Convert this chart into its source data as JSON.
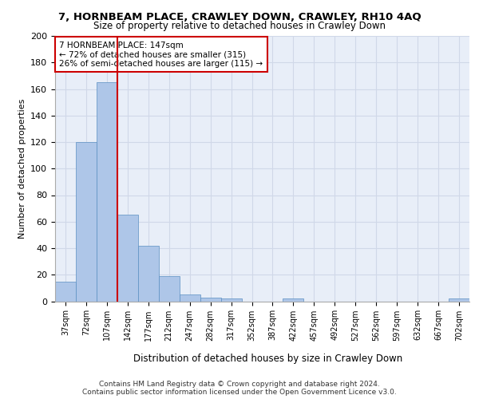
{
  "title": "7, HORNBEAM PLACE, CRAWLEY DOWN, CRAWLEY, RH10 4AQ",
  "subtitle": "Size of property relative to detached houses in Crawley Down",
  "xlabel": "Distribution of detached houses by size in Crawley Down",
  "ylabel": "Number of detached properties",
  "bar_values": [
    15,
    120,
    165,
    65,
    42,
    19,
    5,
    3,
    2,
    0,
    0,
    2,
    0,
    0,
    0,
    0,
    0,
    0,
    0,
    2
  ],
  "bar_labels": [
    "37sqm",
    "72sqm",
    "107sqm",
    "142sqm",
    "177sqm",
    "212sqm",
    "247sqm",
    "282sqm",
    "317sqm",
    "352sqm",
    "387sqm",
    "422sqm",
    "457sqm",
    "492sqm",
    "527sqm",
    "562sqm",
    "597sqm",
    "632sqm",
    "667sqm",
    "702sqm"
  ],
  "bar_color": "#aec6e8",
  "bar_edge_color": "#5a8fc2",
  "property_line_x": 2.5,
  "property_line_color": "#cc0000",
  "annotation_text": "7 HORNBEAM PLACE: 147sqm\n← 72% of detached houses are smaller (315)\n26% of semi-detached houses are larger (115) →",
  "annotation_box_color": "#cc0000",
  "annotation_text_color": "#000000",
  "ylim": [
    0,
    200
  ],
  "yticks": [
    0,
    20,
    40,
    60,
    80,
    100,
    120,
    140,
    160,
    180,
    200
  ],
  "grid_color": "#d0d8e8",
  "background_color": "#e8eef8",
  "footer": "Contains HM Land Registry data © Crown copyright and database right 2024.\nContains public sector information licensed under the Open Government Licence v3.0."
}
